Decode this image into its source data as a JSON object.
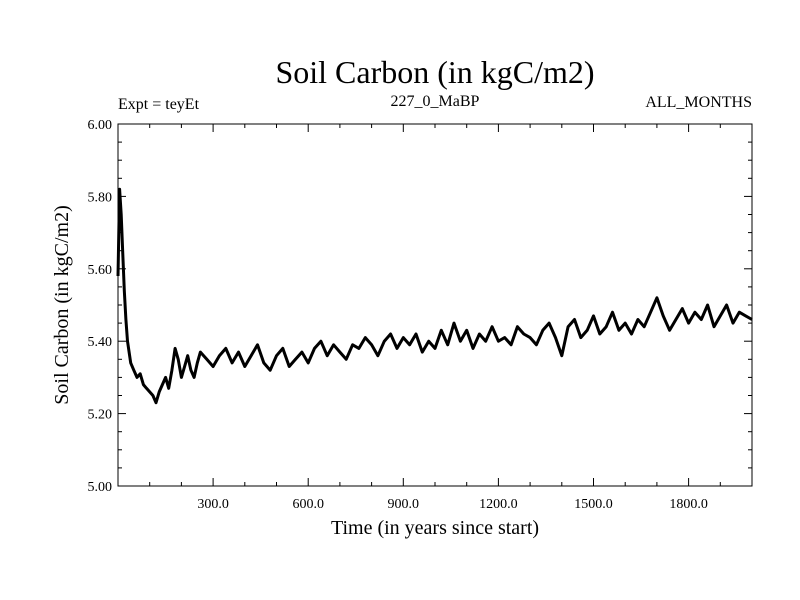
{
  "chart_data": {
    "type": "line",
    "title": "Soil Carbon (in kgC/m2)",
    "subtitle_left": "Expt = teyEt",
    "subtitle_center": "227_0_MaBP",
    "subtitle_right": "ALL_MONTHS",
    "xlabel": "Time (in years since start)",
    "ylabel": "Soil Carbon (in kgC/m2)",
    "xlim": [
      0,
      2000
    ],
    "ylim": [
      5.0,
      6.0
    ],
    "x_ticks": [
      300,
      600,
      900,
      1200,
      1500,
      1800
    ],
    "x_tick_labels": [
      "300.0",
      "600.0",
      "900.0",
      "1200.0",
      "1500.0",
      "1800.0"
    ],
    "y_ticks": [
      5.0,
      5.2,
      5.4,
      5.6,
      5.8,
      6.0
    ],
    "y_tick_labels": [
      "5.00",
      "5.20",
      "5.40",
      "5.60",
      "5.80",
      "6.00"
    ],
    "series": [
      {
        "name": "Soil Carbon",
        "x": [
          0,
          5,
          10,
          15,
          20,
          25,
          30,
          40,
          50,
          60,
          70,
          80,
          90,
          100,
          110,
          120,
          130,
          140,
          150,
          160,
          170,
          180,
          190,
          200,
          210,
          220,
          230,
          240,
          250,
          260,
          280,
          300,
          320,
          340,
          360,
          380,
          400,
          420,
          440,
          460,
          480,
          500,
          520,
          540,
          560,
          580,
          600,
          620,
          640,
          660,
          680,
          700,
          720,
          740,
          760,
          780,
          800,
          820,
          840,
          860,
          880,
          900,
          920,
          940,
          960,
          980,
          1000,
          1020,
          1040,
          1060,
          1080,
          1100,
          1120,
          1140,
          1160,
          1180,
          1200,
          1220,
          1240,
          1260,
          1280,
          1300,
          1320,
          1340,
          1360,
          1380,
          1400,
          1420,
          1440,
          1460,
          1480,
          1500,
          1520,
          1540,
          1560,
          1580,
          1600,
          1620,
          1640,
          1660,
          1680,
          1700,
          1720,
          1740,
          1760,
          1780,
          1800,
          1820,
          1840,
          1860,
          1880,
          1900,
          1920,
          1940,
          1960,
          1980,
          2000
        ],
        "y": [
          5.58,
          5.82,
          5.75,
          5.64,
          5.54,
          5.46,
          5.4,
          5.34,
          5.32,
          5.3,
          5.31,
          5.28,
          5.27,
          5.26,
          5.25,
          5.23,
          5.26,
          5.28,
          5.3,
          5.27,
          5.32,
          5.38,
          5.35,
          5.3,
          5.33,
          5.36,
          5.32,
          5.3,
          5.34,
          5.37,
          5.35,
          5.33,
          5.36,
          5.38,
          5.34,
          5.37,
          5.33,
          5.36,
          5.39,
          5.34,
          5.32,
          5.36,
          5.38,
          5.33,
          5.35,
          5.37,
          5.34,
          5.38,
          5.4,
          5.36,
          5.39,
          5.37,
          5.35,
          5.39,
          5.38,
          5.41,
          5.39,
          5.36,
          5.4,
          5.42,
          5.38,
          5.41,
          5.39,
          5.42,
          5.37,
          5.4,
          5.38,
          5.43,
          5.39,
          5.45,
          5.4,
          5.43,
          5.38,
          5.42,
          5.4,
          5.44,
          5.4,
          5.41,
          5.39,
          5.44,
          5.42,
          5.41,
          5.39,
          5.43,
          5.45,
          5.41,
          5.36,
          5.44,
          5.46,
          5.41,
          5.43,
          5.47,
          5.42,
          5.44,
          5.48,
          5.43,
          5.45,
          5.42,
          5.46,
          5.44,
          5.48,
          5.52,
          5.47,
          5.43,
          5.46,
          5.49,
          5.45,
          5.48,
          5.46,
          5.5,
          5.44,
          5.47,
          5.5,
          5.45,
          5.48,
          5.47,
          5.46
        ]
      }
    ]
  }
}
